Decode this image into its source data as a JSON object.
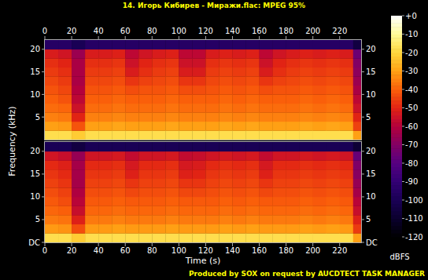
{
  "chart_data": {
    "type": "heatmap",
    "title": "14. Игорь Кибирев - Миражи.flac: MPEG 95%",
    "x_label": "Time (s)",
    "y_label": "Frequency (kHz)",
    "footer": "Produced by SOX on request by AUCDTECT TASK MANAGER",
    "xlim": [
      0,
      236
    ],
    "xticks": [
      0,
      20,
      40,
      60,
      80,
      100,
      120,
      140,
      160,
      180,
      200,
      220
    ],
    "ylim": [
      0,
      22.05
    ],
    "x_bins": [
      0,
      10,
      20,
      30,
      40,
      50,
      60,
      70,
      80,
      90,
      100,
      110,
      120,
      130,
      140,
      150,
      160,
      170,
      180,
      190,
      200,
      210,
      220,
      230,
      236
    ],
    "y_bins": [
      0,
      2,
      4,
      6,
      8,
      10,
      12,
      14,
      16,
      18,
      20,
      22.05
    ],
    "panels": [
      {
        "yticks": [
          5,
          10,
          15,
          20
        ],
        "cells": [
          [
            -18,
            -30,
            -35,
            -38,
            -40,
            -42,
            -44,
            -46,
            -48,
            -52,
            -95
          ],
          [
            -18,
            -31,
            -36,
            -39,
            -42,
            -44,
            -46,
            -48,
            -50,
            -54,
            -95
          ],
          [
            -22,
            -42,
            -50,
            -55,
            -58,
            -60,
            -62,
            -62,
            -62,
            -65,
            -100
          ],
          [
            -18,
            -30,
            -35,
            -38,
            -40,
            -42,
            -44,
            -46,
            -48,
            -52,
            -95
          ],
          [
            -18,
            -30,
            -35,
            -38,
            -40,
            -42,
            -44,
            -46,
            -48,
            -52,
            -95
          ],
          [
            -18,
            -29,
            -34,
            -37,
            -39,
            -41,
            -43,
            -45,
            -47,
            -51,
            -95
          ],
          [
            -18,
            -30,
            -35,
            -38,
            -40,
            -43,
            -47,
            -52,
            -55,
            -58,
            -95
          ],
          [
            -18,
            -30,
            -35,
            -38,
            -40,
            -42,
            -45,
            -48,
            -50,
            -54,
            -95
          ],
          [
            -18,
            -30,
            -35,
            -38,
            -40,
            -42,
            -44,
            -46,
            -48,
            -52,
            -95
          ],
          [
            -18,
            -29,
            -34,
            -37,
            -39,
            -41,
            -43,
            -45,
            -47,
            -51,
            -95
          ],
          [
            -18,
            -30,
            -35,
            -38,
            -40,
            -43,
            -47,
            -52,
            -55,
            -58,
            -95
          ],
          [
            -18,
            -30,
            -35,
            -38,
            -40,
            -43,
            -47,
            -52,
            -55,
            -58,
            -95
          ],
          [
            -18,
            -30,
            -35,
            -38,
            -40,
            -42,
            -44,
            -46,
            -48,
            -52,
            -95
          ],
          [
            -18,
            -29,
            -34,
            -37,
            -39,
            -41,
            -43,
            -45,
            -47,
            -51,
            -95
          ],
          [
            -18,
            -30,
            -35,
            -38,
            -40,
            -42,
            -44,
            -46,
            -48,
            -52,
            -95
          ],
          [
            -18,
            -29,
            -34,
            -37,
            -39,
            -41,
            -43,
            -45,
            -47,
            -51,
            -95
          ],
          [
            -18,
            -30,
            -35,
            -38,
            -40,
            -43,
            -47,
            -52,
            -55,
            -58,
            -95
          ],
          [
            -18,
            -30,
            -35,
            -38,
            -40,
            -42,
            -45,
            -48,
            -50,
            -54,
            -95
          ],
          [
            -18,
            -30,
            -35,
            -38,
            -40,
            -42,
            -44,
            -46,
            -48,
            -52,
            -95
          ],
          [
            -18,
            -29,
            -34,
            -37,
            -39,
            -41,
            -43,
            -45,
            -47,
            -51,
            -95
          ],
          [
            -18,
            -30,
            -35,
            -38,
            -40,
            -42,
            -44,
            -46,
            -48,
            -52,
            -95
          ],
          [
            -18,
            -29,
            -34,
            -37,
            -39,
            -41,
            -43,
            -45,
            -47,
            -51,
            -95
          ],
          [
            -18,
            -30,
            -35,
            -38,
            -40,
            -42,
            -44,
            -46,
            -48,
            -52,
            -95
          ],
          [
            -30,
            -45,
            -50,
            -55,
            -58,
            -62,
            -65,
            -68,
            -70,
            -75,
            -105
          ]
        ]
      },
      {
        "yticks": [
          {
            "value": 0,
            "label": "DC"
          },
          5,
          10,
          15,
          20
        ],
        "cells": [
          [
            -18,
            -31,
            -36,
            -39,
            -41,
            -43,
            -45,
            -47,
            -49,
            -54,
            -100
          ],
          [
            -18,
            -32,
            -37,
            -40,
            -43,
            -45,
            -47,
            -49,
            -51,
            -56,
            -100
          ],
          [
            -22,
            -43,
            -51,
            -56,
            -59,
            -61,
            -63,
            -63,
            -63,
            -66,
            -105
          ],
          [
            -18,
            -31,
            -36,
            -39,
            -41,
            -43,
            -45,
            -47,
            -49,
            -54,
            -100
          ],
          [
            -18,
            -31,
            -36,
            -39,
            -41,
            -43,
            -45,
            -47,
            -49,
            -54,
            -100
          ],
          [
            -18,
            -30,
            -35,
            -38,
            -40,
            -42,
            -44,
            -46,
            -48,
            -53,
            -100
          ],
          [
            -18,
            -31,
            -36,
            -39,
            -41,
            -44,
            -47,
            -51,
            -53,
            -57,
            -100
          ],
          [
            -18,
            -31,
            -36,
            -39,
            -41,
            -43,
            -45,
            -47,
            -49,
            -54,
            -100
          ],
          [
            -18,
            -31,
            -36,
            -39,
            -41,
            -43,
            -45,
            -47,
            -49,
            -54,
            -100
          ],
          [
            -18,
            -30,
            -35,
            -38,
            -40,
            -42,
            -44,
            -46,
            -48,
            -53,
            -100
          ],
          [
            -18,
            -31,
            -36,
            -39,
            -41,
            -44,
            -47,
            -51,
            -53,
            -57,
            -100
          ],
          [
            -18,
            -31,
            -36,
            -39,
            -41,
            -44,
            -47,
            -50,
            -52,
            -56,
            -100
          ],
          [
            -18,
            -31,
            -36,
            -39,
            -41,
            -43,
            -45,
            -47,
            -49,
            -54,
            -100
          ],
          [
            -18,
            -30,
            -35,
            -38,
            -40,
            -42,
            -44,
            -46,
            -48,
            -53,
            -100
          ],
          [
            -18,
            -31,
            -36,
            -39,
            -41,
            -43,
            -45,
            -47,
            -49,
            -54,
            -100
          ],
          [
            -18,
            -30,
            -35,
            -38,
            -40,
            -42,
            -44,
            -46,
            -48,
            -53,
            -100
          ],
          [
            -18,
            -31,
            -36,
            -39,
            -41,
            -44,
            -47,
            -51,
            -53,
            -57,
            -100
          ],
          [
            -18,
            -31,
            -36,
            -39,
            -41,
            -43,
            -45,
            -47,
            -49,
            -54,
            -100
          ],
          [
            -18,
            -31,
            -36,
            -39,
            -41,
            -43,
            -45,
            -47,
            -49,
            -54,
            -100
          ],
          [
            -18,
            -30,
            -35,
            -38,
            -40,
            -42,
            -44,
            -46,
            -48,
            -53,
            -100
          ],
          [
            -18,
            -31,
            -36,
            -39,
            -41,
            -43,
            -45,
            -47,
            -49,
            -54,
            -100
          ],
          [
            -18,
            -30,
            -35,
            -38,
            -40,
            -42,
            -44,
            -46,
            -48,
            -53,
            -100
          ],
          [
            -18,
            -31,
            -36,
            -39,
            -41,
            -43,
            -45,
            -47,
            -49,
            -54,
            -100
          ],
          [
            -30,
            -46,
            -51,
            -56,
            -59,
            -63,
            -66,
            -69,
            -71,
            -76,
            -108
          ]
        ]
      }
    ],
    "colorbar": {
      "range": [
        -120,
        0
      ],
      "label": "dBFS",
      "ticks": [
        {
          "value": 0,
          "label": "+0"
        },
        -10,
        -20,
        -30,
        -40,
        -50,
        -60,
        -70,
        -80,
        -90,
        -100,
        -110,
        -120
      ]
    }
  }
}
